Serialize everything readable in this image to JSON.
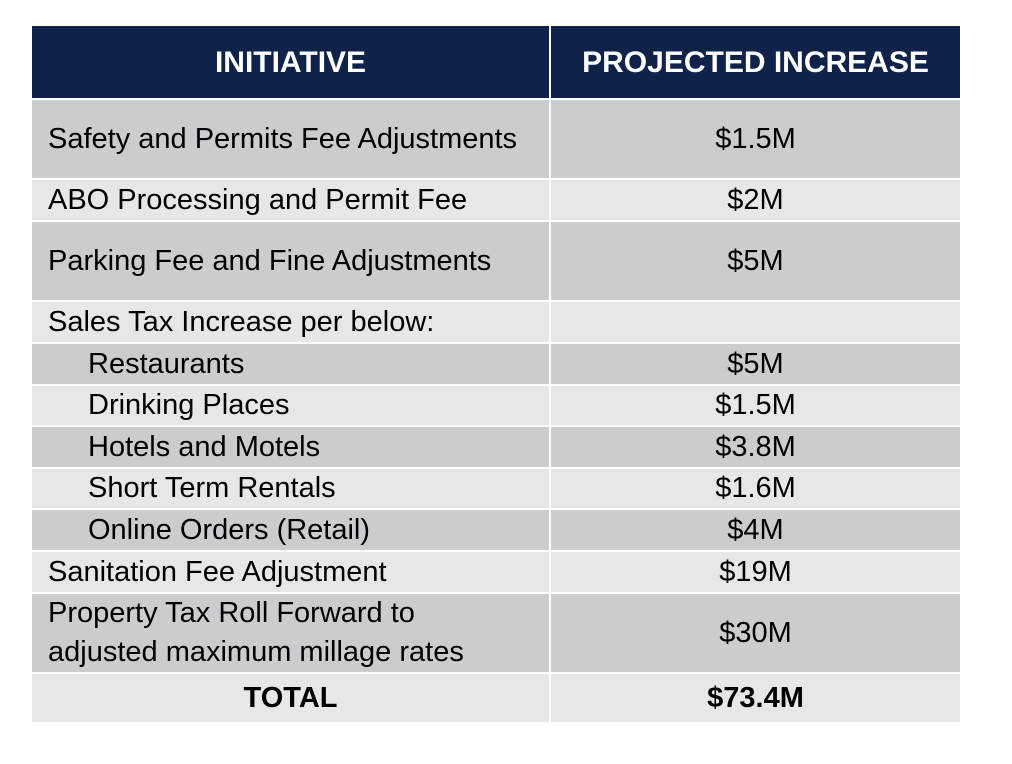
{
  "table": {
    "header": [
      "INITIATIVE",
      "PROJECTED INCREASE"
    ],
    "rows": [
      [
        "Safety and Permits Fee Adjustments",
        "$1.5M"
      ],
      [
        "ABO Processing and Permit Fee",
        "$2M"
      ],
      [
        "Parking Fee and Fine Adjustments",
        "$5M"
      ],
      [
        "Sales Tax Increase per below:"
      ],
      [
        "Restaurants",
        "$5M"
      ],
      [
        "Drinking Places",
        "$1.5M"
      ],
      [
        "Hotels and Motels",
        "$3.8M"
      ],
      [
        "Short Term Rentals",
        "$1.6M"
      ],
      [
        "Online Orders (Retail)",
        "$4M"
      ],
      [
        "Sanitation Fee Adjustment",
        "$19M"
      ],
      [
        "Property Tax Roll Forward to adjusted maximum millage rates",
        "$30M"
      ]
    ],
    "total": [
      "TOTAL",
      "$73.4M"
    ]
  }
}
